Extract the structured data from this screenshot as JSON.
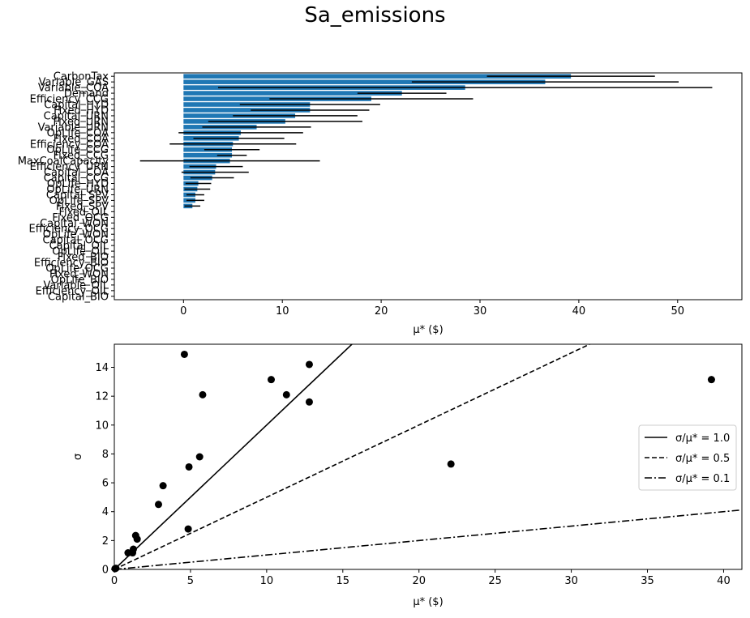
{
  "title": "Sa_emissions",
  "chart_data": [
    {
      "type": "bar",
      "orientation": "horizontal",
      "xlabel": "μ* ($)",
      "xlim": [
        -7,
        56.5
      ],
      "xticks": [
        0,
        10,
        20,
        30,
        40,
        50
      ],
      "bar_color": "#1f77b4",
      "errorbar_color": "#000000",
      "categories": [
        "CarbonTax",
        "Variable_GAS",
        "Variable_COA",
        "Demand",
        "Efficiency_CCG",
        "Capital_HYD",
        "Fixed_HYD",
        "Capital_URN",
        "Fixed_URN",
        "Variable_URN",
        "OpLife_COA",
        "Fixed_COA",
        "Efficiency_COA",
        "OpLife_CCG",
        "Fixed_CCG",
        "MaxCoalCapacity",
        "Efficiency_URN",
        "Capital_COA",
        "Capital_CCG",
        "OpLife_HYD",
        "OpLife_URN",
        "Capital_SPV",
        "OpLife_SPV",
        "Fixed_SPV",
        "Fixed_OIL",
        "Fixed_OCG",
        "Capital_WON",
        "Efficiency_OCG",
        "OpLife_WON",
        "Capital_OCG",
        "Capital_OIL",
        "OpLife_OIL",
        "Fixed_BIO",
        "Efficiency_BIO",
        "OpLife_OCG",
        "Fixed_WON",
        "OpLife_BIO",
        "Variable_OIL",
        "Efficiency_OIL",
        "Capital_BIO"
      ],
      "values": [
        39.2,
        36.6,
        28.5,
        22.1,
        19.0,
        12.8,
        12.8,
        11.3,
        10.3,
        7.4,
        5.8,
        5.6,
        5.0,
        4.9,
        4.9,
        4.7,
        3.3,
        3.2,
        2.9,
        1.5,
        1.4,
        1.2,
        1.2,
        0.9,
        0,
        0,
        0,
        0,
        0,
        0,
        0,
        0,
        0,
        0,
        0,
        0,
        0,
        0,
        0,
        0
      ],
      "errors": [
        8.5,
        13.5,
        25.0,
        4.5,
        10.3,
        7.1,
        6.0,
        6.3,
        7.8,
        5.5,
        6.3,
        4.6,
        6.4,
        2.8,
        1.5,
        9.1,
        2.7,
        3.4,
        2.2,
        1.3,
        1.3,
        0.9,
        0.9,
        0.8,
        0,
        0,
        0,
        0,
        0,
        0,
        0,
        0,
        0,
        0,
        0,
        0,
        0,
        0,
        0,
        0
      ]
    },
    {
      "type": "scatter",
      "xlabel": "μ*  ($)",
      "ylabel": "σ",
      "xlim": [
        0,
        41.2
      ],
      "ylim": [
        0,
        15.6
      ],
      "xticks": [
        0,
        5,
        10,
        15,
        20,
        25,
        30,
        35,
        40
      ],
      "yticks": [
        0,
        2,
        4,
        6,
        8,
        10,
        12,
        14
      ],
      "point_color": "#000000",
      "points": [
        {
          "x": 0.05,
          "y": 0.05
        },
        {
          "x": 0.1,
          "y": 0.08
        },
        {
          "x": 0.9,
          "y": 1.15
        },
        {
          "x": 1.2,
          "y": 1.15
        },
        {
          "x": 1.25,
          "y": 1.4
        },
        {
          "x": 1.4,
          "y": 2.35
        },
        {
          "x": 1.5,
          "y": 2.1
        },
        {
          "x": 2.9,
          "y": 4.5
        },
        {
          "x": 3.2,
          "y": 5.8
        },
        {
          "x": 4.6,
          "y": 14.9
        },
        {
          "x": 4.85,
          "y": 2.8
        },
        {
          "x": 4.9,
          "y": 7.1
        },
        {
          "x": 5.6,
          "y": 7.8
        },
        {
          "x": 5.8,
          "y": 12.1
        },
        {
          "x": 10.3,
          "y": 13.15
        },
        {
          "x": 11.3,
          "y": 12.1
        },
        {
          "x": 12.8,
          "y": 14.2
        },
        {
          "x": 12.8,
          "y": 11.6
        },
        {
          "x": 22.1,
          "y": 7.3
        },
        {
          "x": 39.2,
          "y": 13.15
        }
      ],
      "reference_lines": [
        {
          "name": "σ/μ* = 1.0",
          "slope": 1.0,
          "style": "solid"
        },
        {
          "name": "σ/μ* = 0.5",
          "slope": 0.5,
          "style": "dashed"
        },
        {
          "name": "σ/μ* = 0.1",
          "slope": 0.1,
          "style": "dashdot"
        }
      ],
      "legend_position": "center-right"
    }
  ]
}
